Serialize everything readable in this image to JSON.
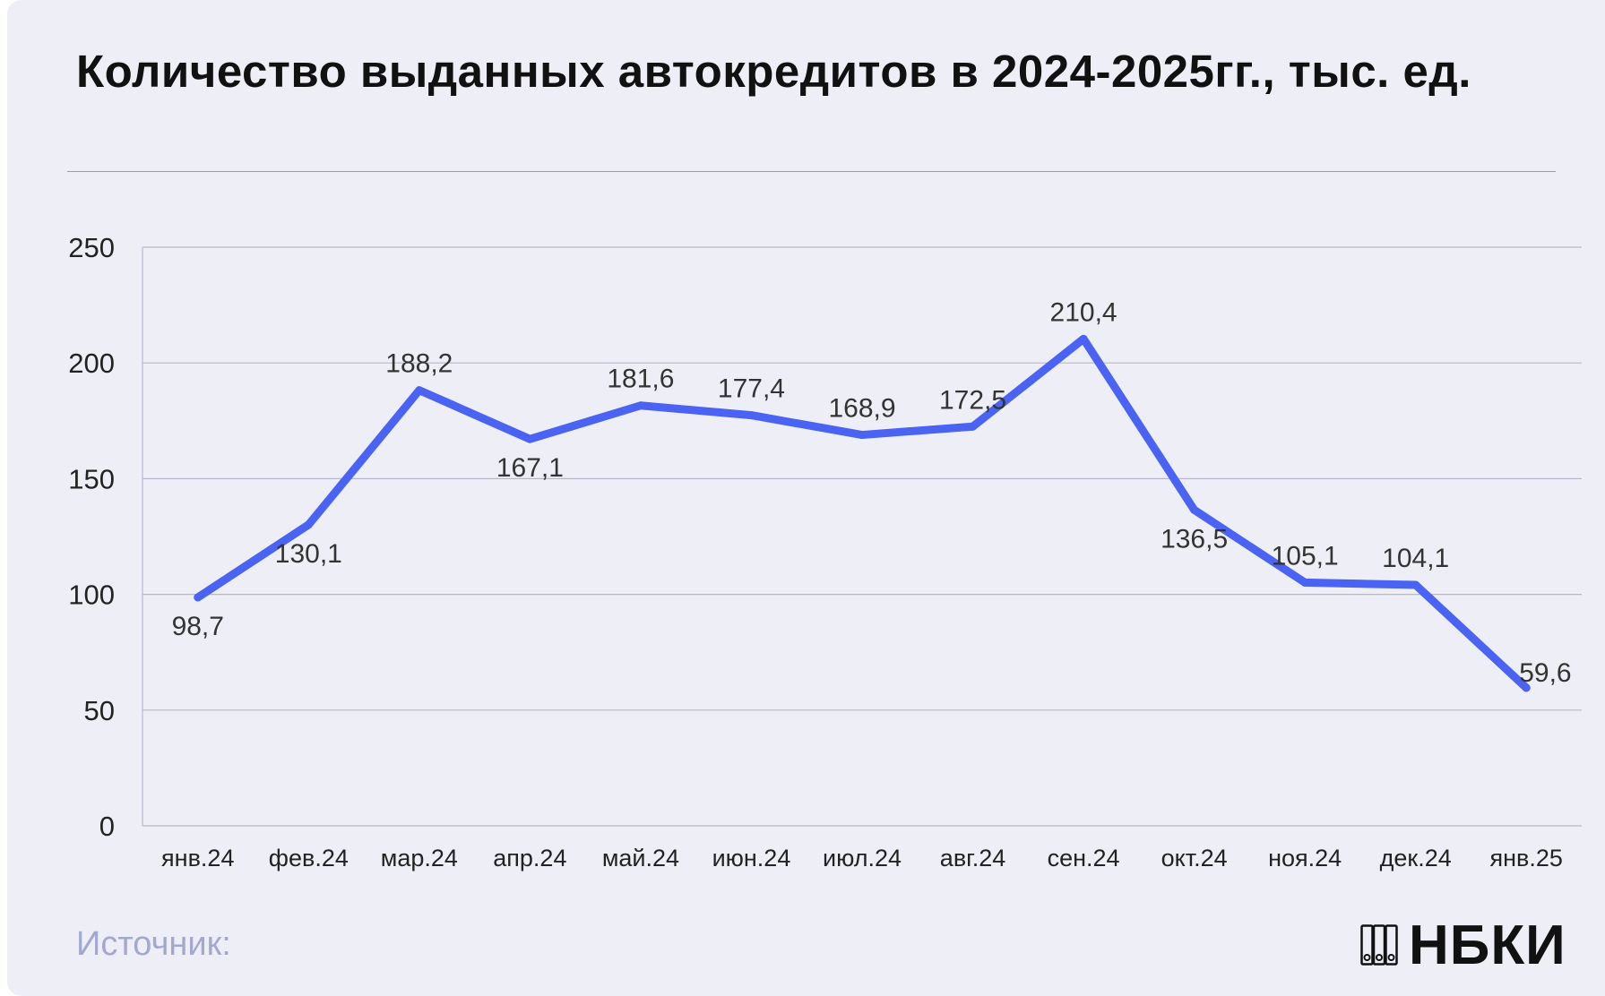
{
  "page": {
    "title": "Количество выданных автокредитов в 2024-2025гг., тыс. ед.",
    "source_label": "Источник:",
    "logo_text": "НБКИ",
    "logo_icon": "binders-icon"
  },
  "colors": {
    "background": "#eeeff6",
    "line": "#4a63f2",
    "grid": "#b5b8cc",
    "text": "#222222",
    "source": "#a3a8cf"
  },
  "chart_data": {
    "type": "line",
    "title": "Количество выданных автокредитов в 2024-2025гг., тыс. ед.",
    "xlabel": "",
    "ylabel": "",
    "categories": [
      "янв.24",
      "фев.24",
      "мар.24",
      "апр.24",
      "май.24",
      "июн.24",
      "июл.24",
      "авг.24",
      "сен.24",
      "окт.24",
      "ноя.24",
      "дек.24",
      "янв.25"
    ],
    "series": [
      {
        "values": [
          98.7,
          130.1,
          188.2,
          167.1,
          181.6,
          177.4,
          168.9,
          172.5,
          210.4,
          136.5,
          105.1,
          104.1,
          59.6
        ],
        "labels": [
          "98,7",
          "130,1",
          "188,2",
          "167,1",
          "181,6",
          "177,4",
          "168,9",
          "172,5",
          "210,4",
          "136,5",
          "105,1",
          "104,1",
          "59,6"
        ],
        "label_positions": [
          "below",
          "below",
          "above",
          "below",
          "above",
          "above",
          "above",
          "above",
          "above",
          "below",
          "above",
          "above",
          "right"
        ]
      }
    ],
    "ylim": [
      0,
      250
    ],
    "yticks": [
      0,
      50,
      100,
      150,
      200,
      250
    ],
    "grid": true,
    "legend": "none"
  }
}
